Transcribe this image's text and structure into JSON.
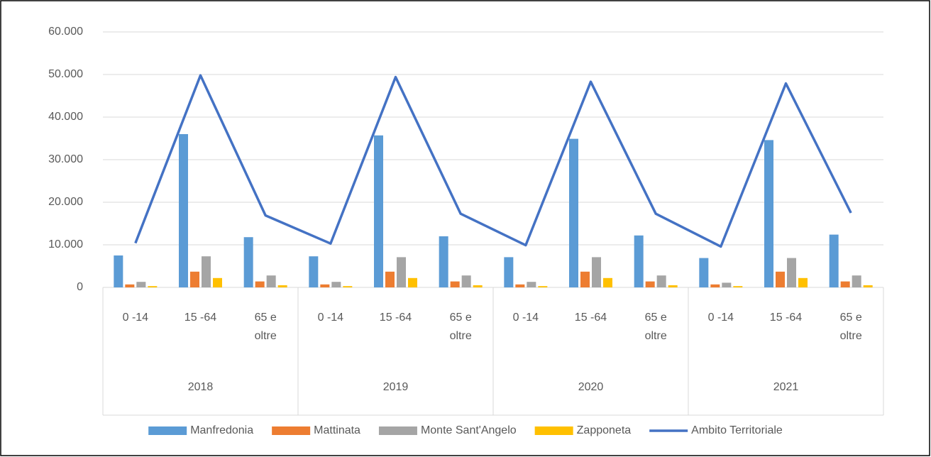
{
  "chart_data": {
    "type": "bar_line",
    "categories": [
      "0 -14",
      "15 -64",
      "65 e oltre",
      "0 -14",
      "15 -64",
      "65 e oltre",
      "0 -14",
      "15 -64",
      "65 e oltre",
      "0 -14",
      "15 -64",
      "65 e oltre"
    ],
    "category_groups": [
      "2018",
      "2019",
      "2020",
      "2021"
    ],
    "series": [
      {
        "name": "Manfredonia",
        "color": "#5b9bd5",
        "kind": "bar",
        "values": [
          7500,
          36000,
          11800,
          7300,
          35700,
          12000,
          7100,
          34900,
          12200,
          6900,
          34600,
          12400
        ]
      },
      {
        "name": "Mattinata",
        "color": "#ed7d31",
        "kind": "bar",
        "values": [
          700,
          3700,
          1400,
          700,
          3700,
          1400,
          700,
          3700,
          1400,
          700,
          3700,
          1400
        ]
      },
      {
        "name": "Monte Sant'Angelo",
        "color": "#a5a5a5",
        "kind": "bar",
        "values": [
          1300,
          7300,
          2800,
          1300,
          7100,
          2800,
          1300,
          7100,
          2800,
          1100,
          6900,
          2800
        ]
      },
      {
        "name": "Zapponeta",
        "color": "#ffc000",
        "kind": "bar",
        "values": [
          300,
          2200,
          500,
          300,
          2200,
          500,
          300,
          2200,
          500,
          300,
          2200,
          500
        ]
      },
      {
        "name": "Ambito Territoriale",
        "color": "#4472c4",
        "kind": "line",
        "values": [
          10400,
          49800,
          16900,
          10300,
          49400,
          17300,
          9900,
          48300,
          17300,
          9600,
          47900,
          17500
        ]
      }
    ],
    "ylim": [
      0,
      60000
    ],
    "yticks": [
      0,
      {
        "value": 10000,
        "label": "10.000"
      },
      {
        "value": 20000,
        "label": "20.000"
      },
      {
        "value": 30000,
        "label": "30.000"
      },
      {
        "value": 40000,
        "label": "40.000"
      },
      {
        "value": 50000,
        "label": "50.000"
      },
      {
        "value": 60000,
        "label": "60.000"
      }
    ],
    "grid": true,
    "legend": "bottom"
  }
}
